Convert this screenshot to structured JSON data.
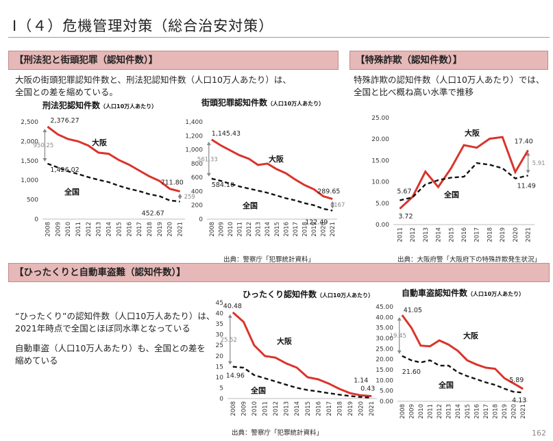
{
  "page_title": "Ⅰ（４）危機管理対策（総合治安対策）",
  "page_number": "162",
  "colors": {
    "osaka": "#d9342b",
    "national": "#111111",
    "header_bg": "#e6b8b7",
    "gap_arrow": "#888888"
  },
  "sections": {
    "crime": {
      "heading": "【刑法犯と街頭犯罪（認知件数）】",
      "text_lines": [
        "大阪の街頭犯罪認知件数と、刑法犯認知件数（人口10万人あたり）は、",
        "全国との差を縮めている。"
      ],
      "source": "出典：警察庁「犯罪統計資料」"
    },
    "fraud": {
      "heading": "【特殊詐欺（認知件数）】",
      "text_lines": [
        "特殊詐欺の認知件数（人口10万人あたり）では、",
        "全国と比べ概ね高い水準で推移"
      ],
      "source": "出典：大阪府警「大阪府下の特殊詐欺発生状況」"
    },
    "snatch": {
      "heading": "【ひったくりと自動車盗難（認知件数）】",
      "text1_lines": [
        "“ひったくり”の認知件数（人口10万人あたり）は、",
        "2021年時点で全国とほぼ同水準となっている"
      ],
      "text2_lines": [
        "自動車盗（人口10万人あたり）も、全国との差を",
        "縮めている"
      ],
      "source": "出典：警察庁「犯罪統計資料」"
    }
  },
  "chart_data": [
    {
      "id": "penal",
      "type": "line",
      "title": "刑法犯認知件数",
      "unit_note": "（人口10万人あたり）",
      "categories": [
        "2008",
        "2009",
        "2010",
        "2011",
        "2012",
        "2013",
        "2014",
        "2015",
        "2016",
        "2017",
        "2018",
        "2019",
        "2020",
        "2021"
      ],
      "ylim": [
        0,
        2500
      ],
      "yticks": [
        "0",
        "500",
        "1,000",
        "1,500",
        "2,000",
        "2,500"
      ],
      "series": [
        {
          "name": "大阪",
          "values": [
            2376.27,
            2180,
            2060,
            2000,
            1890,
            1710,
            1680,
            1520,
            1400,
            1250,
            1100,
            980,
            780,
            711.8
          ]
        },
        {
          "name": "全国",
          "values": [
            1426.02,
            1330,
            1230,
            1160,
            1080,
            1010,
            950,
            860,
            780,
            720,
            640,
            590,
            480,
            452.67
          ]
        }
      ],
      "data_labels": [
        {
          "text": "2,376.27",
          "series": 0,
          "index": 0
        },
        {
          "text": "1,426.02",
          "series": 1,
          "index": 0
        },
        {
          "text": "711.80",
          "series": 0,
          "index": 13
        },
        {
          "text": "452.67",
          "series": 1,
          "index": 13
        }
      ],
      "gap_labels": [
        {
          "text": "950.25",
          "index": 0
        },
        {
          "text": "259.13",
          "index": 13
        }
      ],
      "series_labels": [
        "大阪",
        "全国"
      ]
    },
    {
      "id": "street",
      "type": "line",
      "title": "街頭犯罪認知件数",
      "unit_note": "（人口10万人あたり）",
      "categories": [
        "2008",
        "2009",
        "2010",
        "2011",
        "2012",
        "2013",
        "2014",
        "2015",
        "2016",
        "2017",
        "2018",
        "2019",
        "2020",
        "2021"
      ],
      "ylim": [
        0,
        1400
      ],
      "yticks": [
        "0",
        "200",
        "400",
        "600",
        "800",
        "1,000",
        "1,200",
        "1,400"
      ],
      "series": [
        {
          "name": "大阪",
          "values": [
            1145.43,
            1060,
            990,
            920,
            870,
            780,
            800,
            720,
            660,
            570,
            490,
            430,
            330,
            289.65
          ]
        },
        {
          "name": "全国",
          "values": [
            584.1,
            550,
            510,
            470,
            440,
            410,
            380,
            340,
            300,
            270,
            230,
            200,
            150,
            122.49
          ]
        }
      ],
      "data_labels": [
        {
          "text": "1,145.43",
          "series": 0,
          "index": 0
        },
        {
          "text": "584.10",
          "series": 1,
          "index": 0
        },
        {
          "text": "289.65",
          "series": 0,
          "index": 13
        },
        {
          "text": "122.49",
          "series": 1,
          "index": 13
        }
      ],
      "gap_labels": [
        {
          "text": "561.33",
          "index": 0
        },
        {
          "text": "167.16",
          "index": 13
        }
      ],
      "series_labels": [
        "大阪",
        "全国"
      ]
    },
    {
      "id": "fraud",
      "type": "line",
      "title": "",
      "unit_note": "",
      "categories": [
        "2011",
        "2012",
        "2013",
        "2014",
        "2015",
        "2016",
        "2017",
        "2018",
        "2019",
        "2020",
        "2021"
      ],
      "ylim": [
        0,
        25
      ],
      "yticks": [
        "0.00",
        "5.00",
        "10.00",
        "15.00",
        "20.00",
        "25.00"
      ],
      "series": [
        {
          "name": "大阪",
          "values": [
            3.72,
            6.5,
            12.4,
            8.8,
            13.2,
            18.6,
            18.0,
            20.1,
            20.5,
            12.3,
            17.4
          ]
        },
        {
          "name": "全国",
          "values": [
            5.67,
            6.4,
            9.4,
            10.4,
            11.0,
            11.2,
            14.4,
            14.0,
            13.2,
            10.8,
            11.49
          ]
        }
      ],
      "data_labels": [
        {
          "text": "5.67",
          "series": 1,
          "index": 0
        },
        {
          "text": "3.72",
          "series": 0,
          "index": 0
        },
        {
          "text": "17.40",
          "series": 0,
          "index": 10
        },
        {
          "text": "11.49",
          "series": 1,
          "index": 10
        }
      ],
      "gap_labels": [
        {
          "text": "5.91",
          "index": 10
        }
      ],
      "series_labels": [
        "大阪",
        "全国"
      ]
    },
    {
      "id": "snatch",
      "type": "line",
      "title": "ひったくり認知件数",
      "unit_note": "（人口10万人あたり）",
      "categories": [
        "2008",
        "2009",
        "2010",
        "2011",
        "2012",
        "2013",
        "2014",
        "2015",
        "2016",
        "2017",
        "2018",
        "2019",
        "2020",
        "2021"
      ],
      "ylim": [
        0,
        45
      ],
      "yticks": [
        "0",
        "5",
        "10",
        "15",
        "20",
        "25",
        "30",
        "35",
        "40",
        "45"
      ],
      "series": [
        {
          "name": "大阪",
          "values": [
            40.48,
            36,
            25,
            20,
            19.2,
            16.5,
            14.5,
            10,
            9,
            7,
            4.5,
            2.5,
            1.5,
            1.14
          ]
        },
        {
          "name": "全国",
          "values": [
            14.96,
            14.5,
            11,
            9.5,
            8,
            6.5,
            5,
            4,
            3.3,
            2.5,
            1.8,
            1.2,
            0.7,
            0.43
          ]
        }
      ],
      "data_labels": [
        {
          "text": "40.48",
          "series": 0,
          "index": 0
        },
        {
          "text": "14.96",
          "series": 1,
          "index": 0
        },
        {
          "text": "1.14",
          "series": 0,
          "index": 13
        },
        {
          "text": "0.43",
          "series": 1,
          "index": 13
        }
      ],
      "gap_labels": [
        {
          "text": "25.52",
          "index": 0
        }
      ],
      "series_labels": [
        "大阪",
        "全国"
      ]
    },
    {
      "id": "car",
      "type": "line",
      "title": "自動車盗認知件数",
      "unit_note": "（人口10万人あたり）",
      "categories": [
        "2008",
        "2009",
        "2010",
        "2011",
        "2012",
        "2013",
        "2014",
        "2015",
        "2016",
        "2017",
        "2018",
        "2019",
        "2020",
        "2021"
      ],
      "ylim": [
        0,
        45
      ],
      "yticks": [
        "0.00",
        "5.00",
        "10.00",
        "15.00",
        "20.00",
        "25.00",
        "30.00",
        "35.00",
        "40.00",
        "45.00"
      ],
      "series": [
        {
          "name": "大阪",
          "values": [
            41.05,
            35,
            26.5,
            26.2,
            29,
            27,
            24,
            19.5,
            17.5,
            16,
            15.5,
            11,
            8.5,
            5.89
          ]
        },
        {
          "name": "全国",
          "values": [
            21.6,
            19.5,
            18.5,
            19.5,
            17,
            17,
            13.8,
            12,
            10.5,
            9,
            7.8,
            6,
            4.5,
            4.13
          ]
        }
      ],
      "data_labels": [
        {
          "text": "41.05",
          "series": 0,
          "index": 0
        },
        {
          "text": "21.60",
          "series": 1,
          "index": 0
        },
        {
          "text": "5.89",
          "series": 0,
          "index": 13
        },
        {
          "text": "4.13",
          "series": 1,
          "index": 13
        }
      ],
      "gap_labels": [
        {
          "text": "19.45",
          "index": 0
        }
      ],
      "series_labels": [
        "大阪",
        "全国"
      ]
    }
  ]
}
